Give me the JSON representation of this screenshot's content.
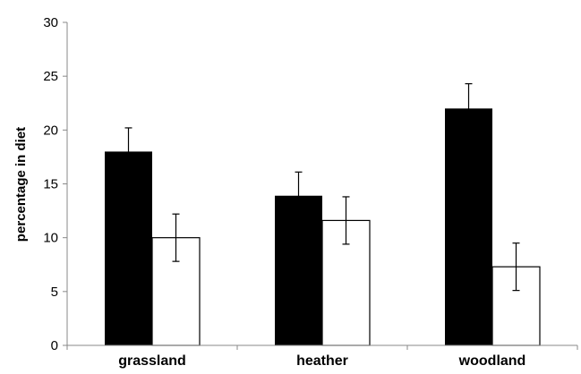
{
  "chart_data": {
    "type": "bar",
    "title": "",
    "xlabel": "",
    "ylabel": "percentage in diet",
    "categories": [
      "grassland",
      "heather",
      "woodland"
    ],
    "series": [
      {
        "color": "#000000",
        "fill": "#000000",
        "values": [
          18,
          13.9,
          22
        ],
        "errors": [
          2.2,
          2.2,
          2.3
        ]
      },
      {
        "color": "#000000",
        "fill": "#ffffff",
        "values": [
          10,
          11.6,
          7.3
        ],
        "errors": [
          2.2,
          2.2,
          2.2
        ]
      }
    ],
    "ylim": [
      0,
      30
    ],
    "yticks": [
      0,
      5,
      10,
      15,
      20,
      25,
      30
    ],
    "grid": false,
    "legend": "none"
  }
}
